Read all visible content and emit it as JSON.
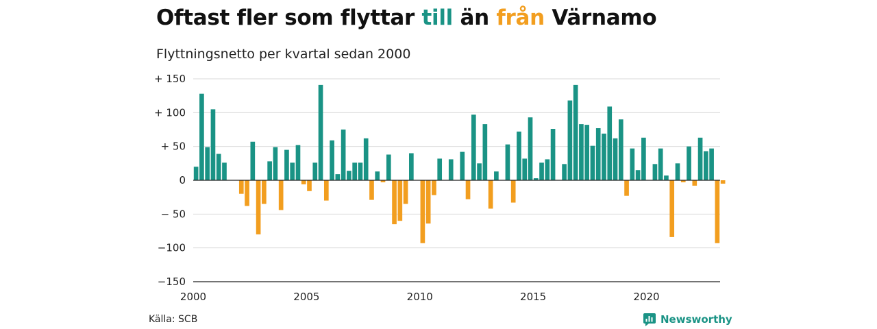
{
  "title": {
    "part1": "Oftast fler som flyttar ",
    "till": "till",
    "part2": " än ",
    "fran": "från",
    "part3": " Värnamo"
  },
  "subtitle": "Flyttningsnetto per kvartal sedan 2000",
  "source": "Källa: SCB",
  "brand": "Newsworthy",
  "colors": {
    "positive": "#1a9385",
    "negative": "#f29e1f",
    "grid": "#d9d9d9",
    "axis": "#222222"
  },
  "chart_data": {
    "type": "bar",
    "title": "Oftast fler som flyttar till än från Värnamo",
    "subtitle": "Flyttningsnetto per kvartal sedan 2000",
    "x_start": 2000.0,
    "x_step": 0.25,
    "xlim": [
      2000,
      2023.25
    ],
    "ylim": [
      -150,
      150
    ],
    "yticks": [
      {
        "value": 150,
        "label": "+ 150"
      },
      {
        "value": 100,
        "label": "+ 100"
      },
      {
        "value": 50,
        "label": "+  50"
      },
      {
        "value": 0,
        "label": "0"
      },
      {
        "value": -50,
        "label": "− 50"
      },
      {
        "value": -100,
        "label": "−100"
      },
      {
        "value": -150,
        "label": "−150"
      }
    ],
    "xticks": [
      {
        "value": 2000,
        "label": "2000"
      },
      {
        "value": 2005,
        "label": "2005"
      },
      {
        "value": 2010,
        "label": "2010"
      },
      {
        "value": 2015,
        "label": "2015"
      },
      {
        "value": 2020,
        "label": "2020"
      }
    ],
    "grid": true,
    "values": [
      20,
      128,
      49,
      105,
      39,
      26,
      0,
      0,
      -20,
      -38,
      57,
      -80,
      -35,
      28,
      49,
      -44,
      45,
      26,
      52,
      -6,
      -16,
      26,
      141,
      -30,
      59,
      9,
      75,
      14,
      26,
      26,
      62,
      -29,
      13,
      -3,
      38,
      -65,
      -60,
      -35,
      40,
      0,
      -93,
      -64,
      -22,
      32,
      0,
      31,
      0,
      42,
      -28,
      97,
      25,
      83,
      -42,
      13,
      0,
      53,
      -33,
      72,
      32,
      93,
      3,
      26,
      31,
      76,
      0,
      24,
      118,
      141,
      83,
      82,
      51,
      77,
      69,
      109,
      62,
      90,
      -23,
      47,
      15,
      63,
      0,
      24,
      47,
      7,
      -84,
      25,
      -3,
      50,
      -8,
      63,
      43,
      47,
      -93,
      -5
    ]
  }
}
